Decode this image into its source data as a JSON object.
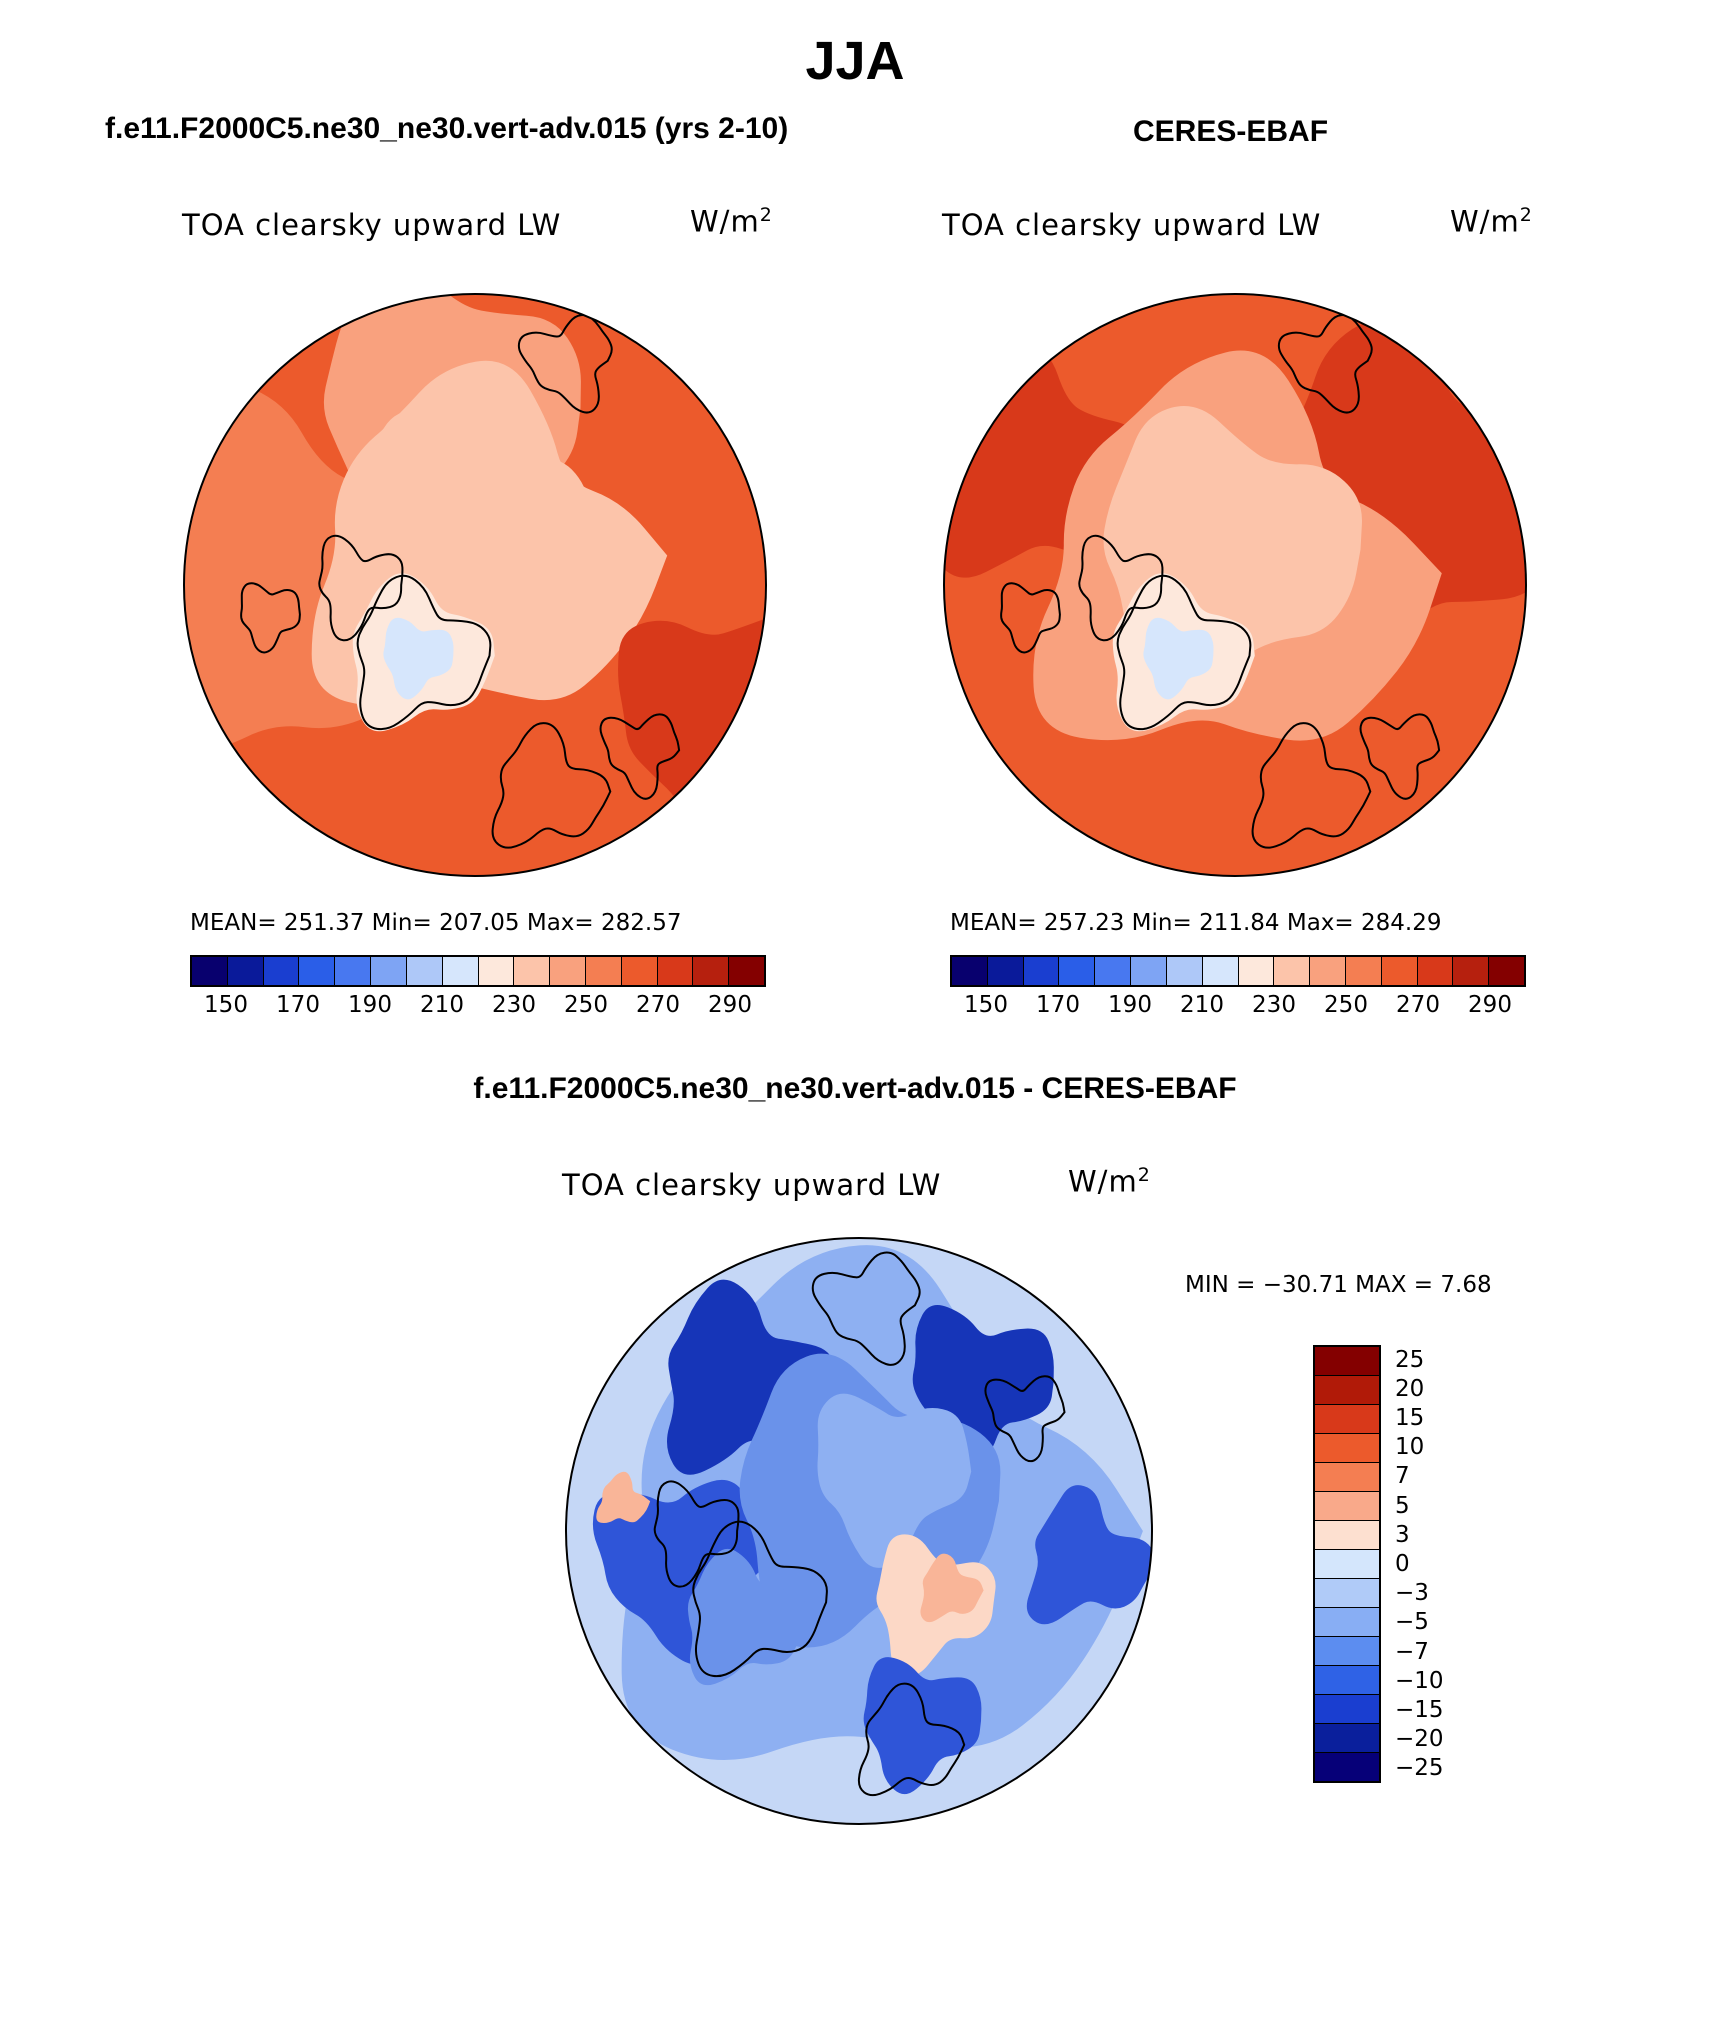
{
  "title": "JJA",
  "colors": {
    "abs_palette": [
      "#08006e",
      "#0a1a9a",
      "#1a3ed0",
      "#2a5ee8",
      "#4878f0",
      "#7ea4f4",
      "#aec8f8",
      "#d6e6fc",
      "#fde8dc",
      "#fcc4aa",
      "#f9a17e",
      "#f47e52",
      "#ec5a2c",
      "#d8391a",
      "#b6200e",
      "#840000"
    ],
    "diff_palette": [
      "#840000",
      "#b11a08",
      "#d8391a",
      "#ec5a2c",
      "#f47e52",
      "#f9a98a",
      "#fde0d0",
      "#d4e6fc",
      "#b0cbf8",
      "#88aef4",
      "#5c8df0",
      "#2f62e6",
      "#1a3ed0",
      "#0a1f9c",
      "#060078"
    ],
    "map_blues": [
      "#c5d7f6",
      "#8eb0f2",
      "#6a92ea",
      "#2f55d8",
      "#1635b8"
    ],
    "map_reds": [
      "#f0784a",
      "#ea6534",
      "#e2541e",
      "#f9b598",
      "#fcd8c6"
    ]
  },
  "panels": [
    {
      "title": "f.e11.F2000C5.ne30_ne30.vert-adv.015 (yrs 2-10)",
      "subtitle": "TOA clearsky upward LW",
      "units_base": "W/m",
      "units_sup": "2",
      "stats": "MEAN= 251.37   Min= 207.05   Max= 282.57",
      "colorbar_labels": [
        "150",
        "170",
        "190",
        "210",
        "230",
        "250",
        "270",
        "290"
      ]
    },
    {
      "title": "CERES-EBAF",
      "subtitle": "TOA clearsky upward LW",
      "units_base": "W/m",
      "units_sup": "2",
      "stats": "MEAN= 257.23   Min= 211.84   Max= 284.29",
      "colorbar_labels": [
        "150",
        "170",
        "190",
        "210",
        "230",
        "250",
        "270",
        "290"
      ]
    },
    {
      "title": "f.e11.F2000C5.ne30_ne30.vert-adv.015 - CERES-EBAF",
      "subtitle": "TOA clearsky upward LW",
      "units_base": "W/m",
      "units_sup": "2",
      "stats": "MIN = −30.71 MAX =    7.68",
      "colorbar_labels": [
        "25",
        "20",
        "15",
        "10",
        "7",
        "5",
        "3",
        "0",
        "−3",
        "−5",
        "−7",
        "−10",
        "−15",
        "−20",
        "−25"
      ]
    }
  ]
}
